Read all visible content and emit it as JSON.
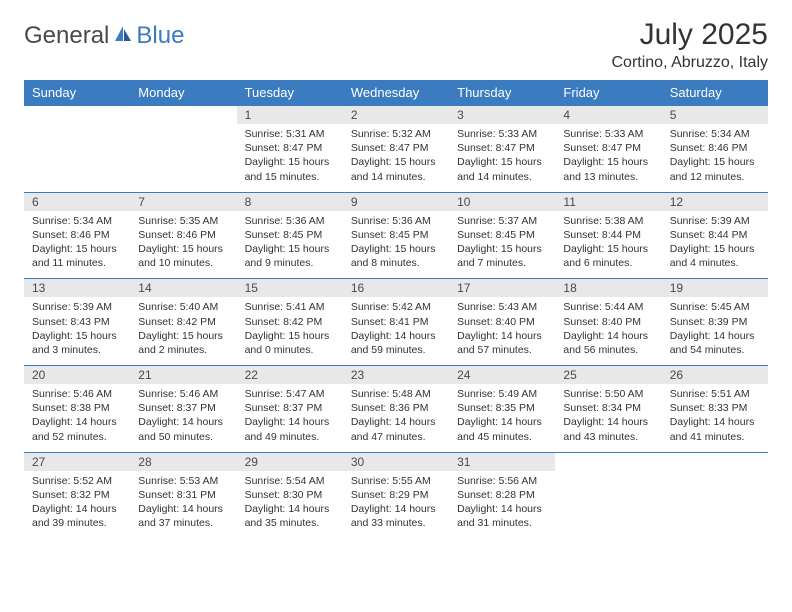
{
  "brand": {
    "part1": "General",
    "part2": "Blue"
  },
  "title": "July 2025",
  "location": "Cortino, Abruzzo, Italy",
  "colors": {
    "header_bg": "#3b7bbf",
    "header_text": "#ffffff",
    "daynum_bg": "#e8e8e8",
    "week_divider": "#3b7bbf",
    "text": "#333333"
  },
  "day_headers": [
    "Sunday",
    "Monday",
    "Tuesday",
    "Wednesday",
    "Thursday",
    "Friday",
    "Saturday"
  ],
  "weeks": [
    [
      null,
      null,
      {
        "n": "1",
        "sunrise": "5:31 AM",
        "sunset": "8:47 PM",
        "daylight": "15 hours and 15 minutes."
      },
      {
        "n": "2",
        "sunrise": "5:32 AM",
        "sunset": "8:47 PM",
        "daylight": "15 hours and 14 minutes."
      },
      {
        "n": "3",
        "sunrise": "5:33 AM",
        "sunset": "8:47 PM",
        "daylight": "15 hours and 14 minutes."
      },
      {
        "n": "4",
        "sunrise": "5:33 AM",
        "sunset": "8:47 PM",
        "daylight": "15 hours and 13 minutes."
      },
      {
        "n": "5",
        "sunrise": "5:34 AM",
        "sunset": "8:46 PM",
        "daylight": "15 hours and 12 minutes."
      }
    ],
    [
      {
        "n": "6",
        "sunrise": "5:34 AM",
        "sunset": "8:46 PM",
        "daylight": "15 hours and 11 minutes."
      },
      {
        "n": "7",
        "sunrise": "5:35 AM",
        "sunset": "8:46 PM",
        "daylight": "15 hours and 10 minutes."
      },
      {
        "n": "8",
        "sunrise": "5:36 AM",
        "sunset": "8:45 PM",
        "daylight": "15 hours and 9 minutes."
      },
      {
        "n": "9",
        "sunrise": "5:36 AM",
        "sunset": "8:45 PM",
        "daylight": "15 hours and 8 minutes."
      },
      {
        "n": "10",
        "sunrise": "5:37 AM",
        "sunset": "8:45 PM",
        "daylight": "15 hours and 7 minutes."
      },
      {
        "n": "11",
        "sunrise": "5:38 AM",
        "sunset": "8:44 PM",
        "daylight": "15 hours and 6 minutes."
      },
      {
        "n": "12",
        "sunrise": "5:39 AM",
        "sunset": "8:44 PM",
        "daylight": "15 hours and 4 minutes."
      }
    ],
    [
      {
        "n": "13",
        "sunrise": "5:39 AM",
        "sunset": "8:43 PM",
        "daylight": "15 hours and 3 minutes."
      },
      {
        "n": "14",
        "sunrise": "5:40 AM",
        "sunset": "8:42 PM",
        "daylight": "15 hours and 2 minutes."
      },
      {
        "n": "15",
        "sunrise": "5:41 AM",
        "sunset": "8:42 PM",
        "daylight": "15 hours and 0 minutes."
      },
      {
        "n": "16",
        "sunrise": "5:42 AM",
        "sunset": "8:41 PM",
        "daylight": "14 hours and 59 minutes."
      },
      {
        "n": "17",
        "sunrise": "5:43 AM",
        "sunset": "8:40 PM",
        "daylight": "14 hours and 57 minutes."
      },
      {
        "n": "18",
        "sunrise": "5:44 AM",
        "sunset": "8:40 PM",
        "daylight": "14 hours and 56 minutes."
      },
      {
        "n": "19",
        "sunrise": "5:45 AM",
        "sunset": "8:39 PM",
        "daylight": "14 hours and 54 minutes."
      }
    ],
    [
      {
        "n": "20",
        "sunrise": "5:46 AM",
        "sunset": "8:38 PM",
        "daylight": "14 hours and 52 minutes."
      },
      {
        "n": "21",
        "sunrise": "5:46 AM",
        "sunset": "8:37 PM",
        "daylight": "14 hours and 50 minutes."
      },
      {
        "n": "22",
        "sunrise": "5:47 AM",
        "sunset": "8:37 PM",
        "daylight": "14 hours and 49 minutes."
      },
      {
        "n": "23",
        "sunrise": "5:48 AM",
        "sunset": "8:36 PM",
        "daylight": "14 hours and 47 minutes."
      },
      {
        "n": "24",
        "sunrise": "5:49 AM",
        "sunset": "8:35 PM",
        "daylight": "14 hours and 45 minutes."
      },
      {
        "n": "25",
        "sunrise": "5:50 AM",
        "sunset": "8:34 PM",
        "daylight": "14 hours and 43 minutes."
      },
      {
        "n": "26",
        "sunrise": "5:51 AM",
        "sunset": "8:33 PM",
        "daylight": "14 hours and 41 minutes."
      }
    ],
    [
      {
        "n": "27",
        "sunrise": "5:52 AM",
        "sunset": "8:32 PM",
        "daylight": "14 hours and 39 minutes."
      },
      {
        "n": "28",
        "sunrise": "5:53 AM",
        "sunset": "8:31 PM",
        "daylight": "14 hours and 37 minutes."
      },
      {
        "n": "29",
        "sunrise": "5:54 AM",
        "sunset": "8:30 PM",
        "daylight": "14 hours and 35 minutes."
      },
      {
        "n": "30",
        "sunrise": "5:55 AM",
        "sunset": "8:29 PM",
        "daylight": "14 hours and 33 minutes."
      },
      {
        "n": "31",
        "sunrise": "5:56 AM",
        "sunset": "8:28 PM",
        "daylight": "14 hours and 31 minutes."
      },
      null,
      null
    ]
  ],
  "labels": {
    "sunrise_prefix": "Sunrise: ",
    "sunset_prefix": "Sunset: ",
    "daylight_prefix": "Daylight: "
  }
}
